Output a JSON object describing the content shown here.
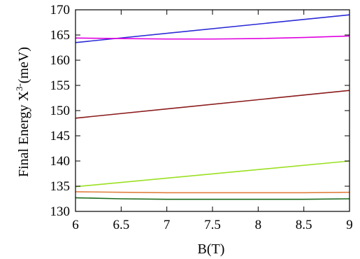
{
  "chart_data": {
    "type": "line",
    "xlabel": "B(T)",
    "ylabel": {
      "base": "Final Energy X",
      "superscript": "3-",
      "unit": "(meV)"
    },
    "xlim": [
      6,
      9
    ],
    "ylim": [
      130,
      170
    ],
    "xticks": [
      "6",
      "6.5",
      "7",
      "7.5",
      "8",
      "8.5",
      "9"
    ],
    "yticks": [
      "130",
      "135",
      "140",
      "145",
      "150",
      "155",
      "160",
      "165",
      "170"
    ],
    "grid": false,
    "series": [
      {
        "color": "#2a2ad8",
        "x": [
          6,
          9
        ],
        "y": [
          163.5,
          169.0
        ]
      },
      {
        "color": "#e000e0",
        "x": [
          6,
          6.5,
          7,
          7.5,
          8,
          8.5,
          9
        ],
        "y": [
          164.4,
          164.3,
          164.2,
          164.2,
          164.3,
          164.5,
          164.8
        ]
      },
      {
        "color": "#8b1a1a",
        "x": [
          6,
          9
        ],
        "y": [
          148.5,
          154.0
        ]
      },
      {
        "color": "#9ae020",
        "x": [
          6,
          9
        ],
        "y": [
          134.9,
          140.0
        ]
      },
      {
        "color": "#e08040",
        "x": [
          6,
          6.5,
          7,
          7.5,
          8,
          8.5,
          9
        ],
        "y": [
          133.9,
          133.8,
          133.7,
          133.7,
          133.7,
          133.7,
          133.8
        ]
      },
      {
        "color": "#1a6b1a",
        "x": [
          6,
          6.5,
          7,
          7.5,
          8,
          8.5,
          9
        ],
        "y": [
          132.7,
          132.5,
          132.4,
          132.4,
          132.4,
          132.4,
          132.5
        ]
      }
    ]
  }
}
